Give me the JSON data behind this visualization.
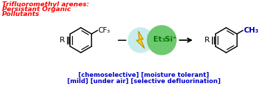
{
  "title_line1": "Trifluoromethyl arenes:",
  "title_line2": "Persistant Organic",
  "title_line3": "Pollutants",
  "title_color": "#FF0000",
  "label_color": "#0000CC",
  "et3si_color": "#007700",
  "arrow_color": "#000000",
  "bottom_line1": "[chemoselective] [moisture tolerant]",
  "bottom_line2": "[mild] [under air] [selective defluorination]",
  "bg_color": "#FFFFFF",
  "circle_light_color": "#C8ECEC",
  "circle_green_color": "#6DC96D",
  "bolt_yellow": "#FFD700",
  "bolt_outline": "#B8860B",
  "ring_color": "#000000",
  "ch3_color": "#0000CC"
}
